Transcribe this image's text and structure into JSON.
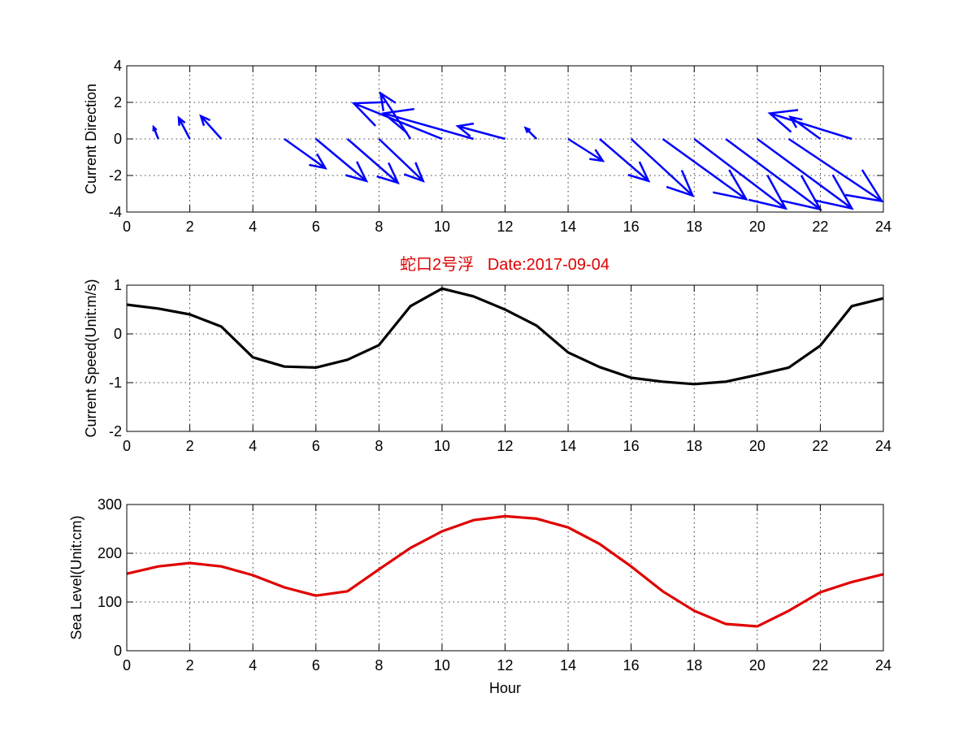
{
  "title": "蛇口2号浮   Date:2017-09-04",
  "colors": {
    "direction": "#0000ff",
    "speed": "#000000",
    "sea_level": "#e00000",
    "title": "#e00000"
  },
  "chart_data": [
    {
      "type": "quiver",
      "ylabel": "Current Direction",
      "xlabel": "",
      "xlim": [
        0,
        24
      ],
      "ylim": [
        -4,
        4
      ],
      "xticks": [
        0,
        2,
        4,
        6,
        8,
        10,
        12,
        14,
        16,
        18,
        20,
        22,
        24
      ],
      "yticks": [
        -4,
        -2,
        0,
        2,
        4
      ],
      "grid": true,
      "x": [
        0,
        1,
        2,
        3,
        4,
        5,
        6,
        7,
        8,
        9,
        10,
        11,
        12,
        13,
        14,
        15,
        16,
        17,
        18,
        19,
        20,
        21,
        22,
        23,
        24
      ],
      "u": [
        0,
        -0.15,
        -0.35,
        -0.65,
        0,
        1.3,
        1.6,
        1.6,
        1.4,
        -0.95,
        -2.8,
        -2.85,
        -1.5,
        -0.35,
        1.1,
        1.55,
        1.95,
        2.65,
        2.9,
        3.0,
        3.0,
        2.95,
        -0.95,
        -2.6,
        0
      ],
      "v": [
        0,
        0.65,
        1.15,
        1.25,
        0,
        -1.6,
        -2.3,
        -2.4,
        -2.3,
        2.5,
        1.95,
        1.4,
        0.7,
        0.6,
        -1.2,
        -2.3,
        -3.1,
        -3.3,
        -3.8,
        -3.85,
        -3.8,
        -3.4,
        1.2,
        1.4,
        0
      ]
    },
    {
      "type": "line",
      "ylabel": "Current Speed(Unit:m/s)",
      "xlabel": "",
      "xlim": [
        0,
        24
      ],
      "ylim": [
        -2,
        1
      ],
      "xticks": [
        0,
        2,
        4,
        6,
        8,
        10,
        12,
        14,
        16,
        18,
        20,
        22,
        24
      ],
      "yticks": [
        -2,
        -1,
        0,
        1
      ],
      "grid": true,
      "x": [
        0,
        1,
        2,
        3,
        4,
        5,
        6,
        7,
        8,
        9,
        10,
        11,
        12,
        13,
        14,
        15,
        16,
        17,
        18,
        19,
        20,
        21,
        22,
        23,
        24
      ],
      "y": [
        0.6,
        0.52,
        0.4,
        0.15,
        -0.48,
        -0.67,
        -0.69,
        -0.53,
        -0.23,
        0.57,
        0.93,
        0.77,
        0.5,
        0.17,
        -0.38,
        -0.68,
        -0.9,
        -0.98,
        -1.03,
        -0.98,
        -0.84,
        -0.69,
        -0.24,
        0.57,
        0.73
      ]
    },
    {
      "type": "line",
      "ylabel": "Sea Level(Unit:cm)",
      "xlabel": "Hour",
      "xlim": [
        0,
        24
      ],
      "ylim": [
        0,
        300
      ],
      "xticks": [
        0,
        2,
        4,
        6,
        8,
        10,
        12,
        14,
        16,
        18,
        20,
        22,
        24
      ],
      "yticks": [
        0,
        100,
        200,
        300
      ],
      "grid": true,
      "x": [
        0,
        1,
        2,
        3,
        4,
        5,
        6,
        7,
        8,
        9,
        10,
        11,
        12,
        13,
        14,
        15,
        16,
        17,
        18,
        19,
        20,
        21,
        22,
        23,
        24
      ],
      "y": [
        158,
        173,
        180,
        173,
        155,
        130,
        113,
        122,
        167,
        211,
        245,
        268,
        276,
        271,
        253,
        219,
        173,
        122,
        82,
        55,
        50,
        82,
        120,
        141,
        157
      ]
    }
  ]
}
